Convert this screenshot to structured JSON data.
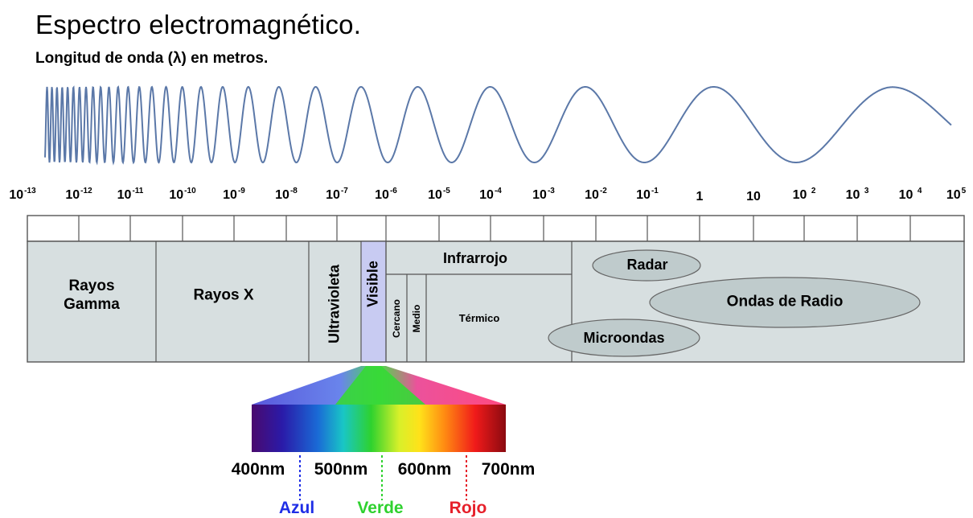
{
  "header": {
    "title": "Espectro electromagnético.",
    "subtitle": "Longitud de onda (λ) en metros."
  },
  "scale": {
    "ticks": [
      {
        "base": "10",
        "exp": "-13"
      },
      {
        "base": "10",
        "exp": "-12"
      },
      {
        "base": "10",
        "exp": "-11"
      },
      {
        "base": "10",
        "exp": "-10"
      },
      {
        "base": "10",
        "exp": "-9"
      },
      {
        "base": "10",
        "exp": "-8"
      },
      {
        "base": "10",
        "exp": "-7"
      },
      {
        "base": "10",
        "exp": "-6"
      },
      {
        "base": "10",
        "exp": "-5"
      },
      {
        "base": "10",
        "exp": "-4"
      },
      {
        "base": "10",
        "exp": "-3"
      },
      {
        "base": "10",
        "exp": "-2"
      },
      {
        "base": "10",
        "exp": "-1"
      },
      {
        "base": "1",
        "exp": ""
      },
      {
        "base": "10",
        "exp": ""
      },
      {
        "base": "10 ",
        "exp": "2"
      },
      {
        "base": "10 ",
        "exp": "3"
      },
      {
        "base": "10 ",
        "exp": "4"
      },
      {
        "base": "10",
        "exp": "5"
      }
    ]
  },
  "bands": {
    "gamma": "Rayos\nGamma",
    "xray": "Rayos X",
    "uv": "Ultravioleta",
    "visible": "Visible",
    "infrared": "Infrarrojo",
    "ir_near": "Cercano",
    "ir_mid": "Medio",
    "ir_thermal": "Térmico",
    "radar": "Radar",
    "radio": "Ondas de Radio",
    "microwaves": "Microondas"
  },
  "visible_detail": {
    "nm_labels": [
      "400nm",
      "500nm",
      "600nm",
      "700nm"
    ],
    "colors": [
      {
        "name": "Azul",
        "hex": "#1f2ee6"
      },
      {
        "name": "Verde",
        "hex": "#2fd12f"
      },
      {
        "name": "Rojo",
        "hex": "#e6202a"
      }
    ]
  },
  "palette": {
    "band_fill": "#d7dfe0",
    "visible_fill": "#c8cbf2",
    "ellipse_fill": "#bfcbcc",
    "wave_stroke": "#5b78a8"
  }
}
